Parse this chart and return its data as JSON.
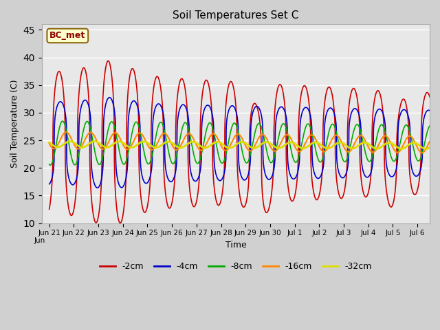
{
  "title": "Soil Temperatures Set C",
  "xlabel": "Time",
  "ylabel": "Soil Temperature (C)",
  "ylim": [
    10,
    46
  ],
  "yticks": [
    10,
    15,
    20,
    25,
    30,
    35,
    40,
    45
  ],
  "annotation": "BC_met",
  "fig_bg": "#d0d0d0",
  "plot_bg": "#e8e8e8",
  "line_colors": {
    "-2cm": "#cc0000",
    "-4cm": "#0000cc",
    "-8cm": "#00aa00",
    "-16cm": "#ff8800",
    "-32cm": "#dddd00"
  },
  "tick_labels": [
    "Jun 21",
    "Jun 22",
    "Jun 23",
    "Jun 24",
    "Jun 25",
    "Jun 26",
    "Jun 27",
    "Jun 28",
    "Jun 29",
    "Jun 30",
    "Jul 1",
    "Jul 2",
    "Jul 3",
    "Jul 4",
    "Jul 5",
    "Jul 6"
  ],
  "first_label": "Jun"
}
